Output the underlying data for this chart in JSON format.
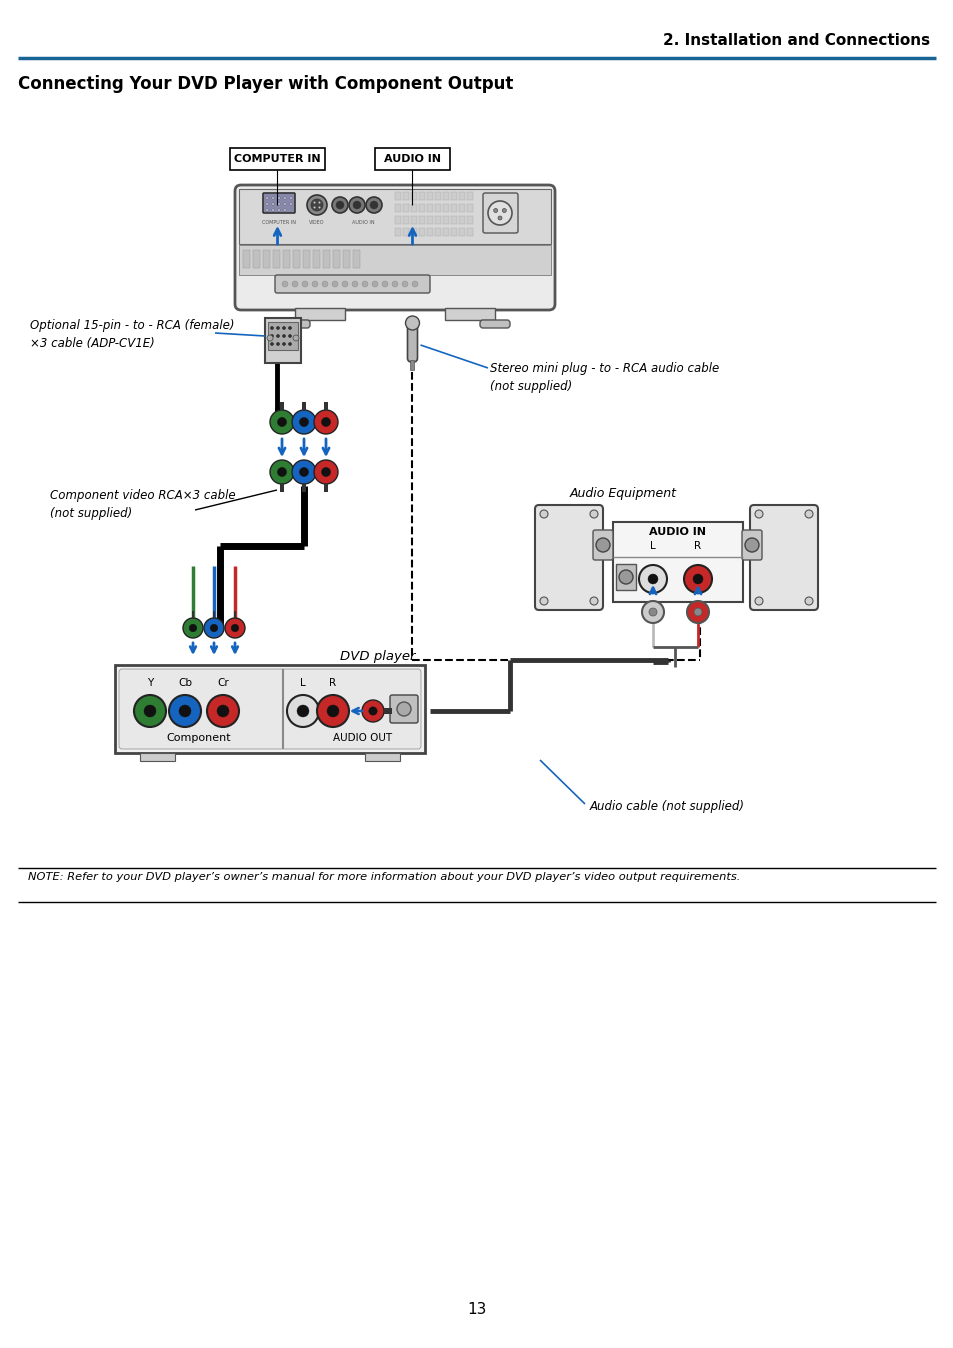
{
  "page_title": "2. Installation and Connections",
  "section_title": "Connecting Your DVD Player with Component Output",
  "page_number": "13",
  "note_text": "NOTE: Refer to your DVD player’s owner’s manual for more information about your DVD player’s video output requirements.",
  "labels": {
    "computer_in": "COMPUTER IN",
    "audio_in_proj": "AUDIO IN",
    "optional_cable": "Optional 15-pin - to - RCA (female)\n×3 cable (ADP-CV1E)",
    "stereo_cable": "Stereo mini plug - to - RCA audio cable\n(not supplied)",
    "component_cable": "Component video RCA×3 cable\n(not supplied)",
    "dvd_player": "DVD player",
    "audio_equipment": "Audio Equipment",
    "audio_cable": "Audio cable (not supplied)",
    "audio_in_amp": "AUDIO IN",
    "l_label": "L",
    "r_label": "R",
    "y_label": "Y",
    "cb_label": "Cb",
    "cr_label": "Cr",
    "component_label": "Component",
    "audio_out_label": "AUDIO OUT"
  },
  "colors": {
    "blue_arrow": "#1565C0",
    "header_blue": "#1A6496",
    "green_rca": "#2E7D32",
    "blue_rca": "#1565C0",
    "red_rca": "#C62828",
    "black": "#000000",
    "white": "#FFFFFF",
    "light_gray": "#E8E8E8",
    "mid_gray": "#9E9E9E",
    "dark_gray": "#424242",
    "proj_body": "#E0E0E0",
    "proj_dark": "#555555"
  },
  "background": "#FFFFFF"
}
